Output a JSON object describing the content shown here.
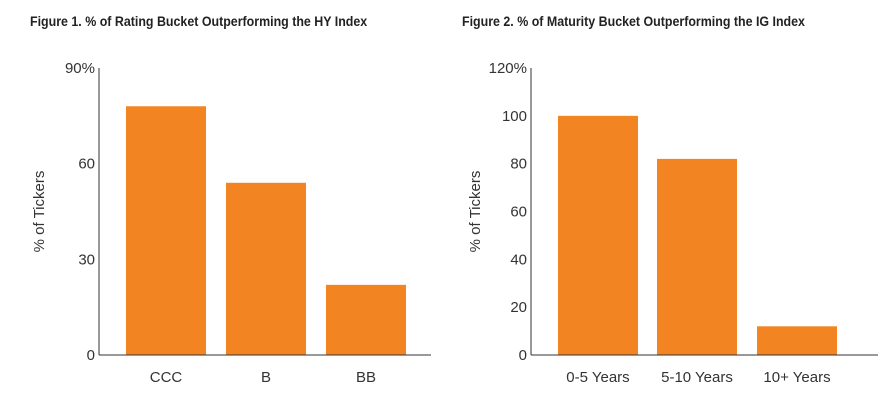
{
  "chart_data": [
    {
      "type": "bar",
      "title": "Figure 1. % of Rating Bucket Outperforming the HY Index",
      "xlabel": "",
      "ylabel": "% of Tickers",
      "categories": [
        "CCC",
        "B",
        "BB"
      ],
      "values": [
        78,
        54,
        22
      ],
      "ylim": [
        0,
        90
      ],
      "yticks": [
        0,
        30,
        60,
        90
      ],
      "ytick_labels": [
        "0",
        "30",
        "60",
        "90%"
      ],
      "grid": false,
      "bar_color": "#f28522"
    },
    {
      "type": "bar",
      "title": "Figure 2. % of Maturity Bucket Outperforming the IG Index",
      "xlabel": "",
      "ylabel": "% of Tickers",
      "categories": [
        "0-5 Years",
        "5-10 Years",
        "10+ Years"
      ],
      "values": [
        100,
        82,
        12
      ],
      "ylim": [
        0,
        120
      ],
      "yticks": [
        0,
        20,
        40,
        60,
        80,
        100,
        120
      ],
      "ytick_labels": [
        "0",
        "20",
        "40",
        "60",
        "80",
        "100",
        "120%"
      ],
      "grid": false,
      "bar_color": "#f28522"
    }
  ]
}
